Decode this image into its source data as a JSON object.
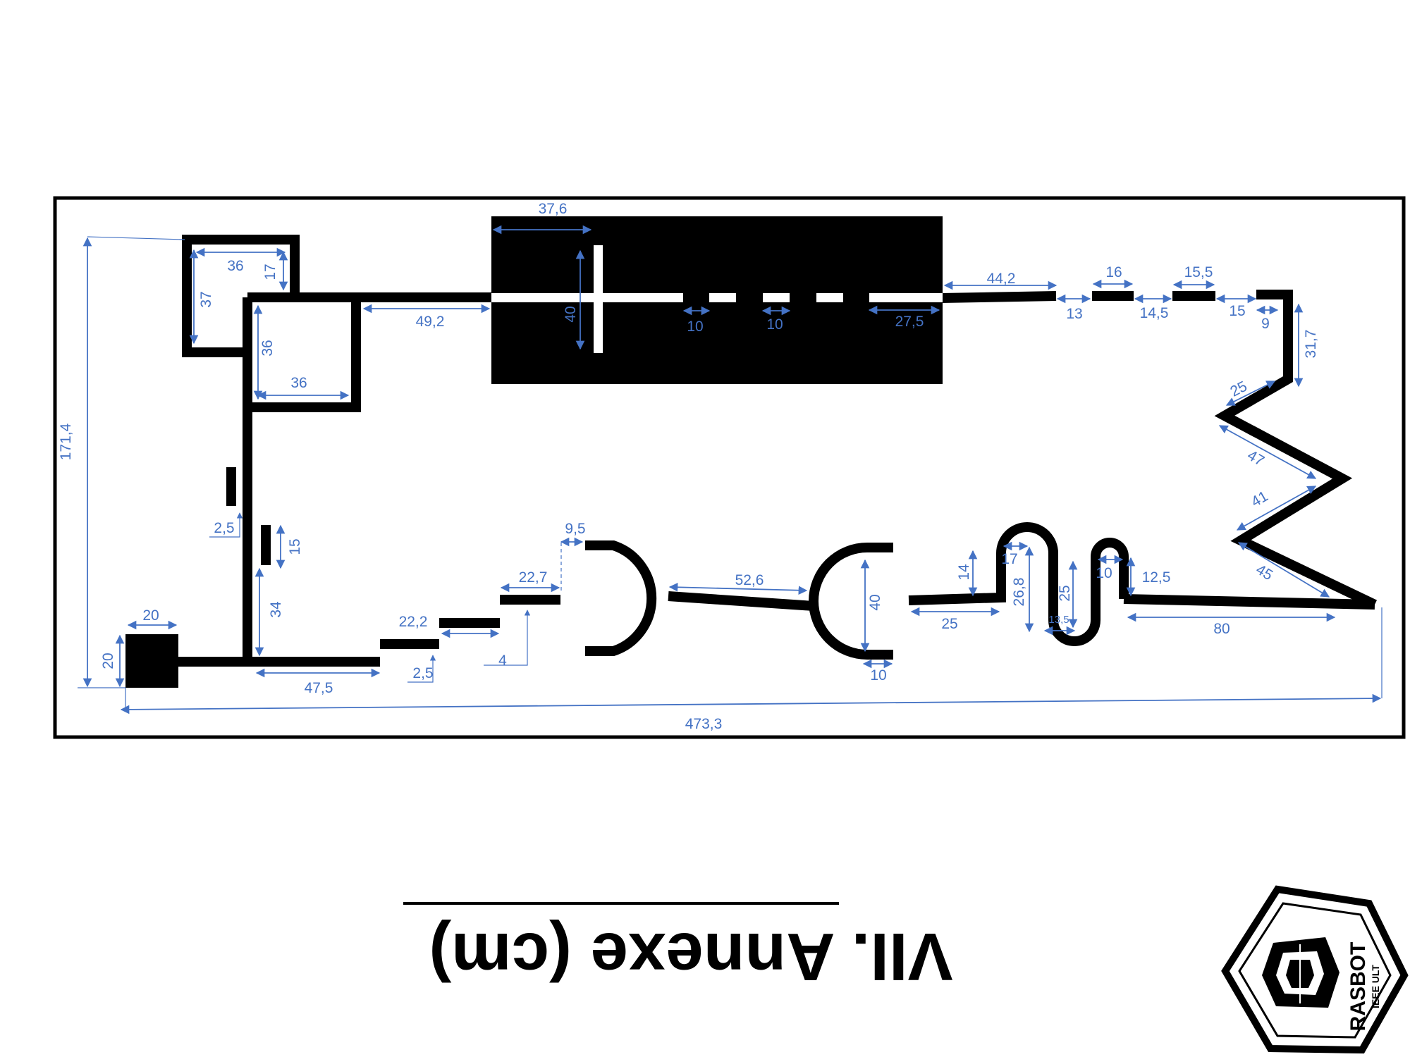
{
  "title": "VII. Annexe (cm)",
  "colors": {
    "track": "#000000",
    "dimension": "#4472C4",
    "background": "#ffffff"
  },
  "logo": {
    "name": "RASBOT",
    "subtitle": "IEEE ULT"
  },
  "dimensions": {
    "overall_width": "473,3",
    "overall_height": "171,4",
    "start_box_width": "20",
    "start_box_height": "20",
    "start_straight": "47,5",
    "left_vertical": "34",
    "left_dash_height": "15",
    "left_dash_offset": "2,5",
    "upper_box_width": "36",
    "upper_box_height": "37",
    "upper_box_notch": "17",
    "lower_box_height": "36",
    "lower_box_width": "36",
    "to_black_zone": "49,2",
    "black_zone_offset": "37,6",
    "cross_height": "40",
    "gap_1": "10",
    "gap_2": "10",
    "black_zone_exit": "27,5",
    "top_seg_1": "44,2",
    "top_gap_1": "13",
    "top_seg_2": "16",
    "top_gap_2": "14,5",
    "top_seg_3": "15,5",
    "top_gap_3": "15",
    "top_seg_4": "9",
    "right_vertical": "31,7",
    "zigzag_1": "25",
    "zigzag_2": "47",
    "zigzag_3": "41",
    "zigzag_4": "45",
    "bottom_straight": "80",
    "wave_end": "12,5",
    "wave_loop_width": "10",
    "wave_inner_height": "25",
    "wave_bottom_width": "13,5",
    "wave_height": "26,8",
    "wave_top_width": "17",
    "wave_rise": "14",
    "wave_entry": "25",
    "bracket_height": "40",
    "bracket_stub": "10",
    "bracket_link": "52,6",
    "step_gap": "9,5",
    "step_3": "22,7",
    "step_rise": "4",
    "step_2": "22,2",
    "step_1_rise": "2,5"
  }
}
